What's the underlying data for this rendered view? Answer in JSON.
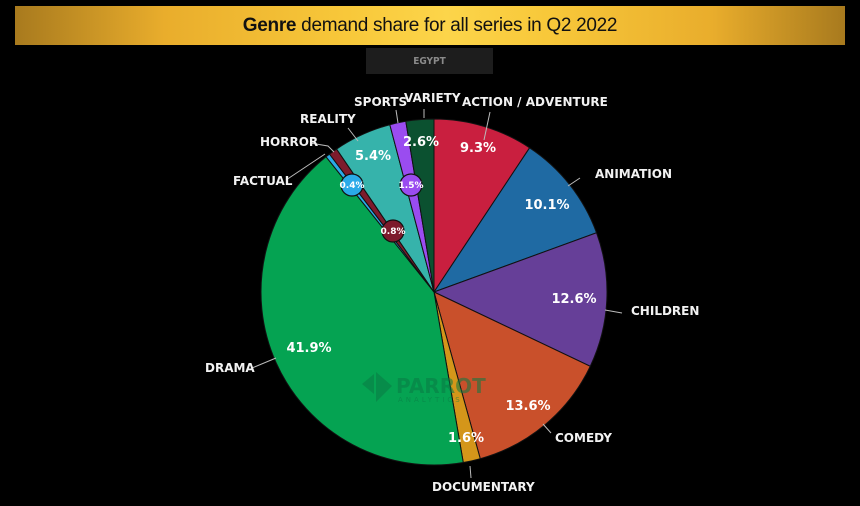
{
  "header": {
    "title_bold": "Genre",
    "title_rest": " demand share for all series in Q2 2022"
  },
  "filter": {
    "market_label": "EGYPT"
  },
  "watermark": {
    "brand": "PARROT",
    "sub": "ANALYTICS"
  },
  "chart_data": {
    "type": "pie",
    "title": "Genre demand share for all series in Q2 2022",
    "subtitle": "EGYPT",
    "unit": "%",
    "start_angle": "12 o'clock, clockwise",
    "categories": [
      "ACTION / ADVENTURE",
      "ANIMATION",
      "CHILDREN",
      "COMEDY",
      "DOCUMENTARY",
      "DRAMA",
      "FACTUAL",
      "HORROR",
      "REALITY",
      "SPORTS",
      "VARIETY"
    ],
    "values": [
      9.3,
      10.1,
      12.6,
      13.6,
      1.6,
      41.9,
      0.4,
      0.8,
      5.4,
      1.5,
      2.6
    ],
    "labels": [
      "9.3%",
      "10.1%",
      "12.6%",
      "13.6%",
      "1.6%",
      "41.9%",
      "0.4%",
      "0.8%",
      "5.4%",
      "1.5%",
      "2.6%"
    ],
    "colors": [
      "#c91f3f",
      "#1f6aa3",
      "#663f98",
      "#c9502b",
      "#d4961a",
      "#05a352",
      "#2aaae8",
      "#7d1b2c",
      "#36b3ab",
      "#9a4cf0",
      "#0b5130"
    ],
    "legend": "none (direct labels)"
  }
}
